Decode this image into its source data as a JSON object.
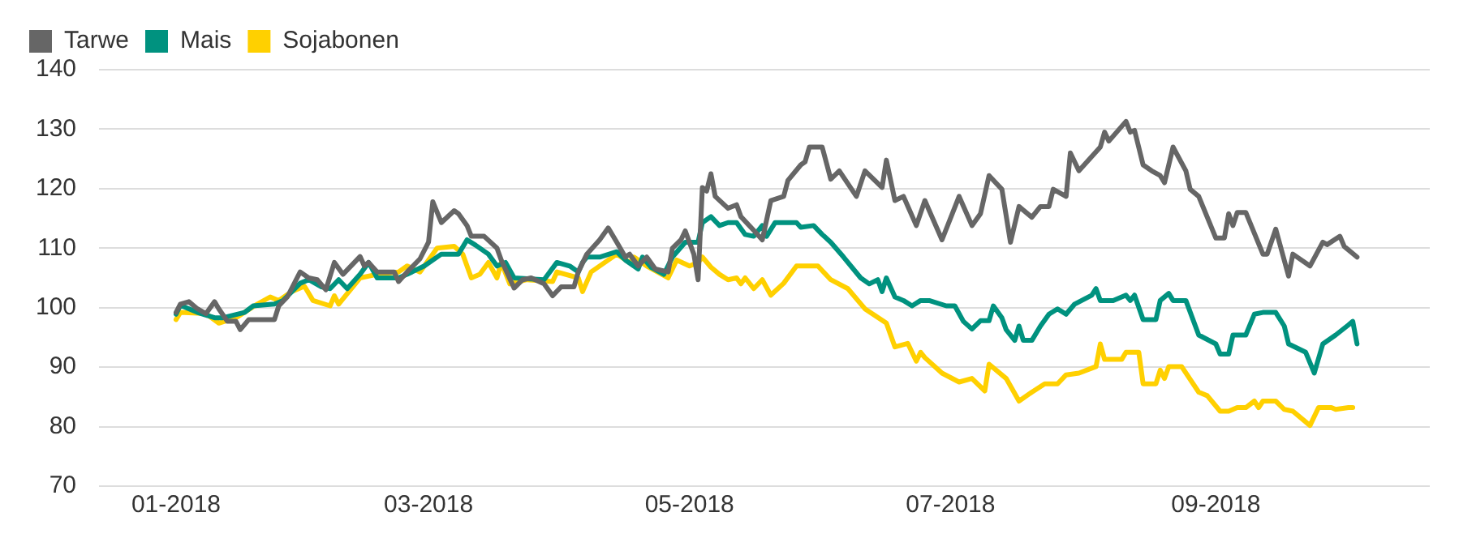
{
  "chart_data": {
    "type": "line",
    "legend": "top left",
    "grid": "y",
    "marker": "none",
    "line_style": "solid",
    "xlim": [
      "2017-12-14",
      "2018-10-21"
    ],
    "xticks": [
      {
        "value": "2018-01-01",
        "label": "01-2018"
      },
      {
        "value": "2018-03-01",
        "label": "03-2018"
      },
      {
        "value": "2018-05-01",
        "label": "05-2018"
      },
      {
        "value": "2018-07-01",
        "label": "07-2018"
      },
      {
        "value": "2018-09-01",
        "label": "09-2018"
      }
    ],
    "ylim": [
      70,
      140
    ],
    "yticks": [
      70,
      80,
      90,
      100,
      110,
      120,
      130,
      140
    ],
    "series": [
      {
        "name": "Tarwe",
        "color": "#666666",
        "x": [
          "2018-01-01",
          "2018-01-02",
          "2018-01-04",
          "2018-01-06",
          "2018-01-08",
          "2018-01-10",
          "2018-01-11",
          "2018-01-13",
          "2018-01-15",
          "2018-01-16",
          "2018-01-18",
          "2018-01-24",
          "2018-01-25",
          "2018-01-27",
          "2018-01-30",
          "2018-02-01",
          "2018-02-03",
          "2018-02-05",
          "2018-02-07",
          "2018-02-09",
          "2018-02-13",
          "2018-02-14",
          "2018-02-15",
          "2018-02-17",
          "2018-02-21",
          "2018-02-22",
          "2018-02-24",
          "2018-02-27",
          "2018-03-01",
          "2018-03-02",
          "2018-03-04",
          "2018-03-07",
          "2018-03-08",
          "2018-03-10",
          "2018-03-11",
          "2018-03-14",
          "2018-03-17",
          "2018-03-18",
          "2018-03-21",
          "2018-03-23",
          "2018-03-25",
          "2018-03-28",
          "2018-03-30",
          "2018-04-01",
          "2018-04-04",
          "2018-04-05",
          "2018-04-07",
          "2018-04-10",
          "2018-04-12",
          "2018-04-14",
          "2018-04-16",
          "2018-04-17",
          "2018-04-19",
          "2018-04-21",
          "2018-04-23",
          "2018-04-26",
          "2018-04-27",
          "2018-04-29",
          "2018-04-30",
          "2018-05-02",
          "2018-05-03",
          "2018-05-04",
          "2018-05-05",
          "2018-05-06",
          "2018-05-07",
          "2018-05-10",
          "2018-05-12",
          "2018-05-13",
          "2018-05-16",
          "2018-05-18",
          "2018-05-20",
          "2018-05-23",
          "2018-05-24",
          "2018-05-27",
          "2018-05-28",
          "2018-05-29",
          "2018-06-01",
          "2018-06-03",
          "2018-06-05",
          "2018-06-09",
          "2018-06-11",
          "2018-06-15",
          "2018-06-16",
          "2018-06-18",
          "2018-06-20",
          "2018-06-23",
          "2018-06-25",
          "2018-06-29",
          "2018-07-03",
          "2018-07-06",
          "2018-07-08",
          "2018-07-10",
          "2018-07-13",
          "2018-07-15",
          "2018-07-17",
          "2018-07-20",
          "2018-07-22",
          "2018-07-24",
          "2018-07-25",
          "2018-07-28",
          "2018-07-29",
          "2018-07-31",
          "2018-08-05",
          "2018-08-06",
          "2018-08-07",
          "2018-08-11",
          "2018-08-12",
          "2018-08-13",
          "2018-08-15",
          "2018-08-17",
          "2018-08-19",
          "2018-08-20",
          "2018-08-22",
          "2018-08-25",
          "2018-08-26",
          "2018-08-28",
          "2018-09-01",
          "2018-09-03",
          "2018-09-04",
          "2018-09-05",
          "2018-09-06",
          "2018-09-08",
          "2018-09-12",
          "2018-09-13",
          "2018-09-15",
          "2018-09-18",
          "2018-09-19",
          "2018-09-23",
          "2018-09-26",
          "2018-09-27",
          "2018-09-30",
          "2018-10-01",
          "2018-10-04"
        ],
        "values": [
          99.2,
          100.6,
          101,
          99.8,
          99,
          101,
          99.8,
          97.7,
          97.7,
          96.3,
          98,
          98,
          100.3,
          101.8,
          106,
          105,
          104.7,
          103,
          107.6,
          105.6,
          108.6,
          107,
          107.6,
          106,
          106,
          104.4,
          106,
          108.2,
          111,
          117.8,
          114.3,
          116.3,
          115.8,
          113.8,
          112,
          112,
          110,
          108,
          103.3,
          104.7,
          105,
          104,
          102,
          103.5,
          103.5,
          106,
          109,
          111.4,
          113.4,
          111,
          108.5,
          109,
          107,
          108.5,
          106.5,
          106,
          110,
          111.4,
          112.9,
          109,
          104.7,
          120.2,
          119.6,
          122.5,
          118.7,
          116.7,
          117.3,
          115.3,
          113,
          111.4,
          118,
          118.7,
          121.4,
          124,
          124.5,
          127,
          127,
          121.6,
          123,
          118.7,
          123,
          120.2,
          124.8,
          118,
          118.7,
          113.8,
          118,
          111.4,
          118.7,
          113.8,
          115.8,
          122.2,
          119.9,
          111,
          117,
          115.2,
          117,
          117,
          119.9,
          118.7,
          126,
          123,
          127,
          129.5,
          128,
          131.3,
          129.5,
          129.8,
          124,
          123,
          122.2,
          121,
          127,
          123,
          119.9,
          118.7,
          111.7,
          111.7,
          115.8,
          113.8,
          116,
          116,
          109,
          109,
          113.2,
          105.3,
          109,
          107,
          111,
          110.6,
          112,
          110.3,
          108.5
        ]
      },
      {
        "name": "Mais",
        "color": "#00927f",
        "x": [
          "2018-01-01",
          "2018-01-02",
          "2018-01-06",
          "2018-01-10",
          "2018-01-12",
          "2018-01-17",
          "2018-01-19",
          "2018-01-24",
          "2018-01-26",
          "2018-01-30",
          "2018-02-01",
          "2018-02-04",
          "2018-02-06",
          "2018-02-08",
          "2018-02-10",
          "2018-02-13",
          "2018-02-15",
          "2018-02-17",
          "2018-02-22",
          "2018-02-24",
          "2018-02-28",
          "2018-03-04",
          "2018-03-08",
          "2018-03-10",
          "2018-03-12",
          "2018-03-15",
          "2018-03-17",
          "2018-03-19",
          "2018-03-21",
          "2018-03-28",
          "2018-03-31",
          "2018-04-03",
          "2018-04-05",
          "2018-04-06",
          "2018-04-07",
          "2018-04-10",
          "2018-04-14",
          "2018-04-16",
          "2018-04-19",
          "2018-04-20",
          "2018-04-22",
          "2018-04-25",
          "2018-04-27",
          "2018-04-30",
          "2018-05-03",
          "2018-05-04",
          "2018-05-06",
          "2018-05-08",
          "2018-05-10",
          "2018-05-12",
          "2018-05-14",
          "2018-05-16",
          "2018-05-18",
          "2018-05-19",
          "2018-05-21",
          "2018-05-26",
          "2018-05-27",
          "2018-05-30",
          "2018-06-01",
          "2018-06-03",
          "2018-06-06",
          "2018-06-10",
          "2018-06-12",
          "2018-06-14",
          "2018-06-15",
          "2018-06-16",
          "2018-06-18",
          "2018-06-20",
          "2018-06-22",
          "2018-06-24",
          "2018-06-26",
          "2018-06-30",
          "2018-07-02",
          "2018-07-04",
          "2018-07-06",
          "2018-07-08",
          "2018-07-10",
          "2018-07-11",
          "2018-07-13",
          "2018-07-14",
          "2018-07-16",
          "2018-07-17",
          "2018-07-18",
          "2018-07-20",
          "2018-07-22",
          "2018-07-24",
          "2018-07-26",
          "2018-07-28",
          "2018-07-30",
          "2018-08-03",
          "2018-08-04",
          "2018-08-05",
          "2018-08-08",
          "2018-08-11",
          "2018-08-12",
          "2018-08-13",
          "2018-08-15",
          "2018-08-18",
          "2018-08-19",
          "2018-08-21",
          "2018-08-22",
          "2018-08-25",
          "2018-08-28",
          "2018-09-01",
          "2018-09-02",
          "2018-09-04",
          "2018-09-05",
          "2018-09-08",
          "2018-09-10",
          "2018-09-12",
          "2018-09-15",
          "2018-09-17",
          "2018-09-18",
          "2018-09-22",
          "2018-09-24",
          "2018-09-26",
          "2018-09-29",
          "2018-10-02",
          "2018-10-03",
          "2018-10-04"
        ],
        "values": [
          98.9,
          100.4,
          99.2,
          98.3,
          98.3,
          99.2,
          100.3,
          100.6,
          101.2,
          104.1,
          104.7,
          103.5,
          103.2,
          104.7,
          103.2,
          105.6,
          107.6,
          105,
          105,
          105.6,
          107,
          109,
          109,
          111.4,
          110.5,
          109,
          107,
          107.6,
          105,
          104.7,
          107.6,
          107,
          106,
          107.6,
          108.5,
          108.5,
          109.4,
          108,
          106.5,
          108.5,
          106.8,
          105.6,
          108.5,
          111,
          111,
          114.3,
          115.3,
          113.8,
          114.3,
          114.3,
          112.3,
          112,
          113.8,
          112,
          114.3,
          114.3,
          113.5,
          113.8,
          112.3,
          111,
          108.5,
          105,
          104,
          104.7,
          102.7,
          105,
          101.8,
          101.2,
          100.3,
          101.2,
          101.2,
          100.3,
          100.3,
          97.7,
          96.4,
          97.8,
          97.8,
          100.3,
          98.3,
          96.3,
          94.5,
          96.9,
          94.5,
          94.5,
          96.9,
          98.9,
          99.8,
          98.9,
          100.6,
          102.1,
          103.2,
          101.2,
          101.2,
          102.1,
          101.2,
          102.1,
          98,
          98,
          101.2,
          102.4,
          101.2,
          101.2,
          95.4,
          93.9,
          92.2,
          92.2,
          95.4,
          95.4,
          98.9,
          99.2,
          99.2,
          96.9,
          93.9,
          92.5,
          89,
          93.9,
          95.4,
          97.1,
          97.7,
          93.9
        ]
      },
      {
        "name": "Sojabonen",
        "color": "#ffd000",
        "x": [
          "2018-01-01",
          "2018-01-02",
          "2018-01-08",
          "2018-01-11",
          "2018-01-15",
          "2018-01-20",
          "2018-01-23",
          "2018-01-25",
          "2018-01-28",
          "2018-01-31",
          "2018-02-02",
          "2018-02-06",
          "2018-02-07",
          "2018-02-08",
          "2018-02-13",
          "2018-02-17",
          "2018-02-22",
          "2018-02-24",
          "2018-02-27",
          "2018-03-03",
          "2018-03-07",
          "2018-03-09",
          "2018-03-11",
          "2018-03-13",
          "2018-03-15",
          "2018-03-17",
          "2018-03-18",
          "2018-03-20",
          "2018-03-24",
          "2018-03-30",
          "2018-03-31",
          "2018-04-05",
          "2018-04-06",
          "2018-04-08",
          "2018-04-14",
          "2018-04-17",
          "2018-04-18",
          "2018-04-21",
          "2018-04-26",
          "2018-04-28",
          "2018-05-01",
          "2018-05-03",
          "2018-05-04",
          "2018-05-06",
          "2018-05-08",
          "2018-05-10",
          "2018-05-12",
          "2018-05-13",
          "2018-05-14",
          "2018-05-16",
          "2018-05-18",
          "2018-05-20",
          "2018-05-23",
          "2018-05-26",
          "2018-05-31",
          "2018-06-03",
          "2018-06-07",
          "2018-06-11",
          "2018-06-16",
          "2018-06-18",
          "2018-06-21",
          "2018-06-23",
          "2018-06-24",
          "2018-06-25",
          "2018-06-29",
          "2018-07-03",
          "2018-07-06",
          "2018-07-09",
          "2018-07-10",
          "2018-07-14",
          "2018-07-17",
          "2018-07-20",
          "2018-07-23",
          "2018-07-26",
          "2018-07-28",
          "2018-07-31",
          "2018-08-04",
          "2018-08-05",
          "2018-08-06",
          "2018-08-10",
          "2018-08-11",
          "2018-08-14",
          "2018-08-15",
          "2018-08-18",
          "2018-08-19",
          "2018-08-20",
          "2018-08-21",
          "2018-08-24",
          "2018-08-28",
          "2018-08-30",
          "2018-09-02",
          "2018-09-04",
          "2018-09-06",
          "2018-09-08",
          "2018-09-10",
          "2018-09-11",
          "2018-09-12",
          "2018-09-15",
          "2018-09-17",
          "2018-09-19",
          "2018-09-23",
          "2018-09-25",
          "2018-09-28",
          "2018-09-29",
          "2018-10-02",
          "2018-10-03"
        ],
        "values": [
          98,
          99.2,
          99,
          97.4,
          98.3,
          100.6,
          101.8,
          101.2,
          102.7,
          103.6,
          101.2,
          100.3,
          102,
          100.6,
          105,
          105.6,
          106,
          107,
          106,
          110,
          110.3,
          109,
          105,
          105.6,
          107.6,
          105,
          107.6,
          104,
          104.7,
          104.4,
          106,
          105,
          102.7,
          106,
          109,
          107.6,
          108.5,
          107,
          105,
          108,
          107,
          107.6,
          108.5,
          106.8,
          105.6,
          104.7,
          105,
          104,
          105,
          103.2,
          104.7,
          102.1,
          104.1,
          107,
          107,
          104.7,
          103.2,
          99.8,
          97.4,
          93.4,
          94,
          91,
          92.5,
          91.6,
          89,
          87.5,
          88.1,
          86,
          90.5,
          88.1,
          84.3,
          85.8,
          87.2,
          87.2,
          88.7,
          89,
          90.1,
          93.9,
          91.3,
          91.3,
          92.5,
          92.5,
          87.2,
          87.2,
          89.5,
          88.1,
          90.1,
          90.1,
          85.8,
          85.2,
          82.6,
          82.6,
          83.2,
          83.2,
          84.3,
          83.2,
          84.3,
          84.3,
          82.9,
          82.6,
          80.2,
          83.2,
          83.2,
          82.9,
          83.2,
          83.2
        ]
      }
    ]
  }
}
